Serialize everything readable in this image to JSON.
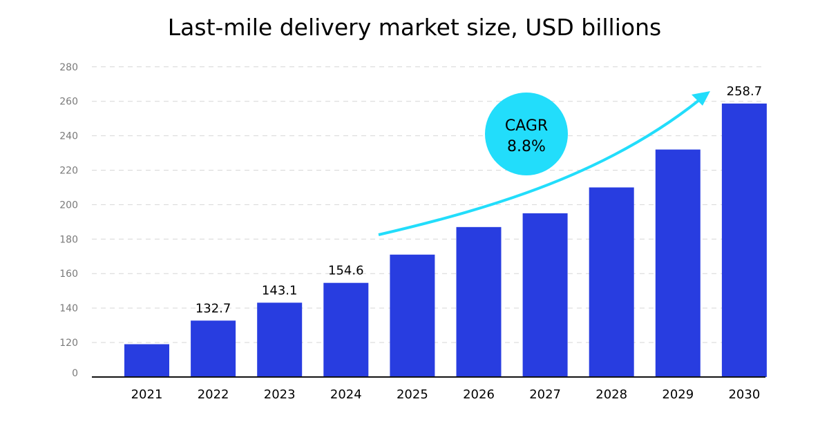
{
  "chart_data": {
    "type": "bar",
    "title": "Last-mile delivery market size, USD billions",
    "xlabel": "",
    "ylabel": "",
    "categories": [
      "2021",
      "2022",
      "2023",
      "2024",
      "2025",
      "2026",
      "2027",
      "2028",
      "2029",
      "2030"
    ],
    "values": [
      114,
      132.7,
      143.1,
      154.6,
      171,
      187,
      195,
      210,
      232,
      258.7
    ],
    "data_labels": [
      "",
      "132.7",
      "143.1",
      "154.6",
      "",
      "",
      "",
      "",
      "",
      "258.7"
    ],
    "yticks": [
      "0",
      "120",
      "140",
      "160",
      "180",
      "200",
      "220",
      "240",
      "260",
      "280"
    ],
    "ylim": [
      0,
      280
    ],
    "axis_break": "between 0 and 120",
    "grid": "horizontal dashed",
    "legend": "none",
    "annotation": {
      "line1": "CAGR",
      "line2": "8.8%"
    },
    "colors": {
      "bar": "#283DE0",
      "accent": "#22DDFB",
      "grid": "#d6d6d6",
      "text": "#000000",
      "tick": "#7a7a7a"
    }
  }
}
